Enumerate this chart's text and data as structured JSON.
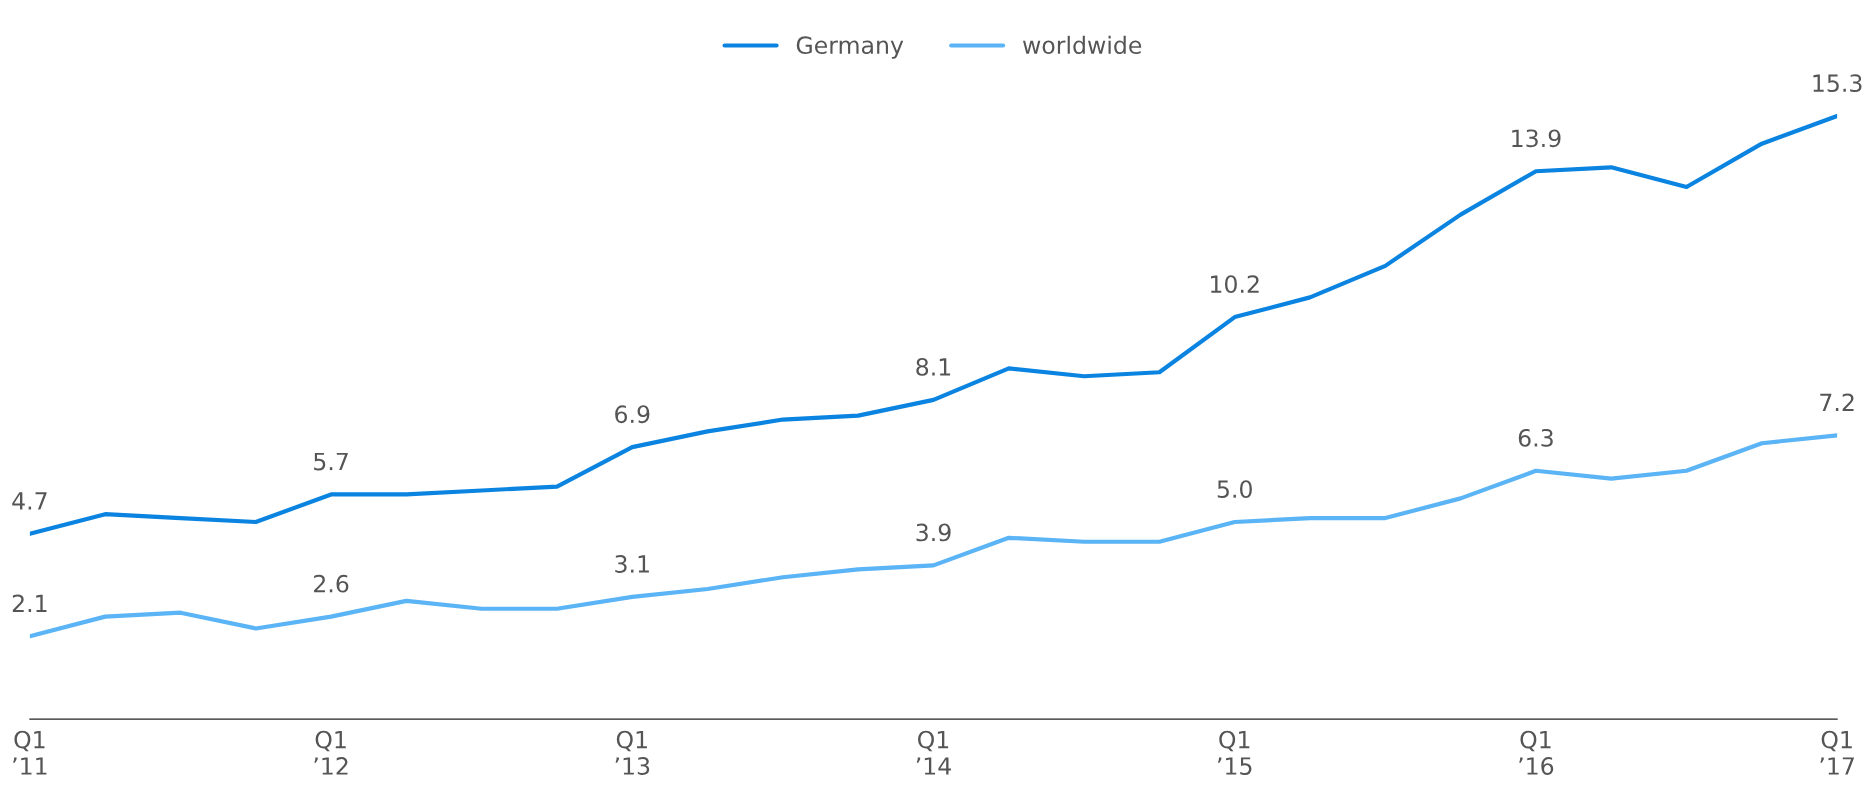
{
  "chart_data": {
    "type": "line",
    "categories": [
      "Q1\n’11",
      null,
      null,
      null,
      "Q1\n’12",
      null,
      null,
      null,
      "Q1\n’13",
      null,
      null,
      null,
      "Q1\n’14",
      null,
      null,
      null,
      "Q1\n’15",
      null,
      null,
      null,
      "Q1\n’16",
      null,
      null,
      null,
      "Q1\n’17"
    ],
    "series": [
      {
        "name": "Germany",
        "color": "#0a84e0",
        "values": [
          4.7,
          5.2,
          5.1,
          5.0,
          5.7,
          5.7,
          5.8,
          5.9,
          6.9,
          7.3,
          7.6,
          7.7,
          8.1,
          8.9,
          8.7,
          8.8,
          10.2,
          10.7,
          11.5,
          12.8,
          13.9,
          14.0,
          13.5,
          14.6,
          15.3
        ],
        "value_labels": [
          "4.7",
          null,
          null,
          null,
          "5.7",
          null,
          null,
          null,
          "6.9",
          null,
          null,
          null,
          "8.1",
          null,
          null,
          null,
          "10.2",
          null,
          null,
          null,
          "13.9",
          null,
          null,
          null,
          "15.3"
        ]
      },
      {
        "name": "worldwide",
        "color": "#5ab4f5",
        "values": [
          2.1,
          2.6,
          2.7,
          2.3,
          2.6,
          3.0,
          2.8,
          2.8,
          3.1,
          3.3,
          3.6,
          3.8,
          3.9,
          4.6,
          4.5,
          4.5,
          5.0,
          5.1,
          5.1,
          5.6,
          6.3,
          6.1,
          6.3,
          7.0,
          7.2
        ],
        "value_labels": [
          "2.1",
          null,
          null,
          null,
          "2.6",
          null,
          null,
          null,
          "3.1",
          null,
          null,
          null,
          "3.9",
          null,
          null,
          null,
          "5.0",
          null,
          null,
          null,
          "6.3",
          null,
          null,
          null,
          "7.2"
        ]
      }
    ],
    "tick_labels": "x",
    "legend": "top",
    "grid": false,
    "marker": "none",
    "line_style": "solid"
  }
}
